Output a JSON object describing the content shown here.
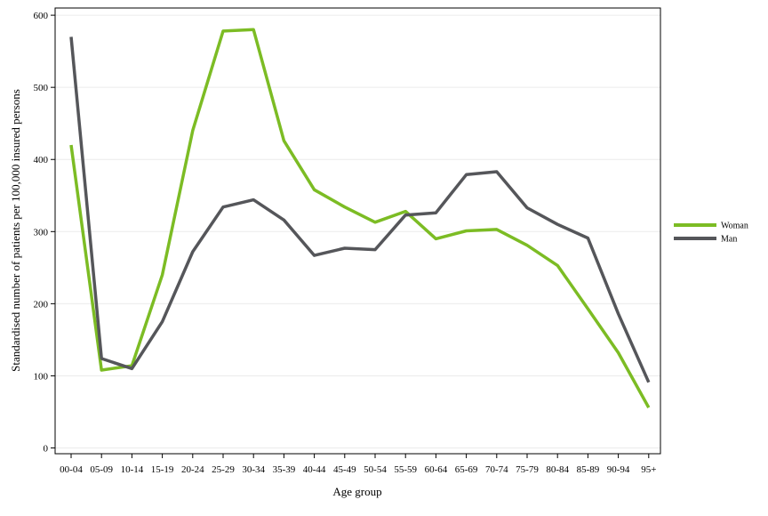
{
  "chart_data": {
    "type": "line",
    "categories": [
      "00-04",
      "05-09",
      "10-14",
      "15-19",
      "20-24",
      "25-29",
      "30-34",
      "35-39",
      "40-44",
      "45-49",
      "50-54",
      "55-59",
      "60-64",
      "65-69",
      "70-74",
      "75-79",
      "80-84",
      "85-89",
      "90-94",
      "95+"
    ],
    "series": [
      {
        "name": "Woman",
        "color": "#7cbc24",
        "values": [
          420,
          108,
          114,
          240,
          440,
          578,
          580,
          426,
          358,
          334,
          313,
          328,
          290,
          301,
          303,
          281,
          253,
          193,
          132,
          56
        ]
      },
      {
        "name": "Man",
        "color": "#55565a",
        "values": [
          570,
          124,
          110,
          175,
          272,
          334,
          344,
          316,
          267,
          277,
          275,
          323,
          326,
          379,
          383,
          333,
          310,
          291,
          186,
          91
        ]
      }
    ],
    "xlabel": "Age group",
    "ylabel": "Standardised number of patients per 100,000 insured persons",
    "ylim": [
      -8,
      610
    ],
    "yticks": [
      0,
      100,
      200,
      300,
      400,
      500,
      600
    ],
    "grid": "horizontal",
    "legend": "right"
  }
}
